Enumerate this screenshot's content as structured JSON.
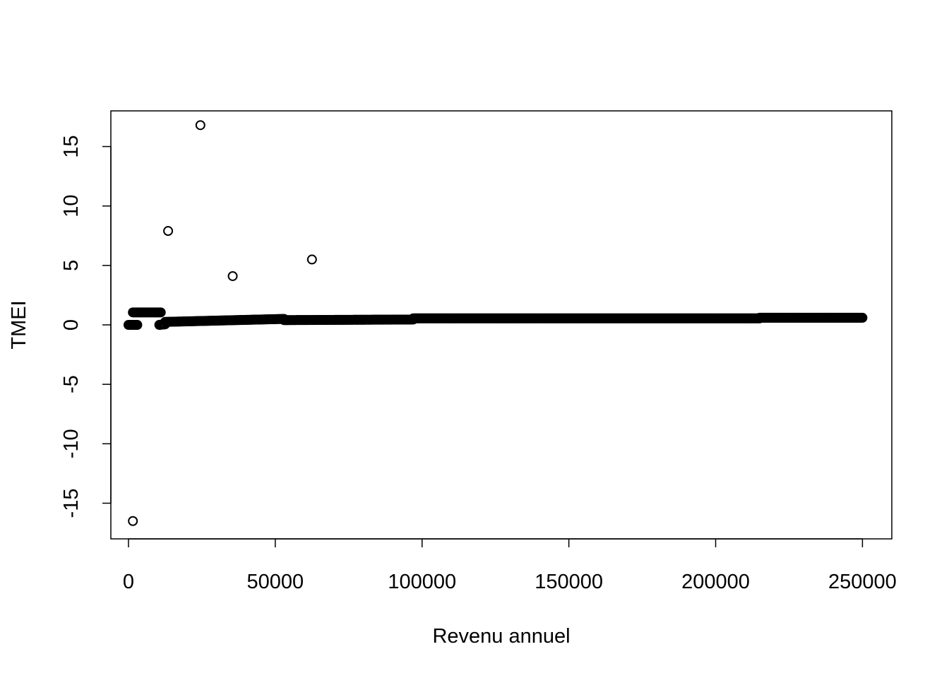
{
  "chart_data": {
    "type": "scatter",
    "title": "",
    "xlabel": "Revenu annuel",
    "ylabel": "TMEI",
    "xlim": [
      -6000,
      260000
    ],
    "ylim": [
      -18,
      18
    ],
    "x_ticks": [
      0,
      50000,
      100000,
      150000,
      200000,
      250000
    ],
    "x_tick_labels": [
      "0",
      "50000",
      "100000",
      "150000",
      "200000",
      "250000"
    ],
    "y_ticks": [
      -15,
      -10,
      -5,
      0,
      5,
      10,
      15
    ],
    "y_tick_labels": [
      "-15",
      "-10",
      "-5",
      "0",
      "5",
      "10",
      "15"
    ],
    "grid": false,
    "marker": "open-circle",
    "point_color": "#000000",
    "outliers": [
      {
        "x": 1500,
        "y": -16.5
      },
      {
        "x": 13500,
        "y": 7.9
      },
      {
        "x": 24500,
        "y": 16.8
      },
      {
        "x": 35500,
        "y": 4.1
      },
      {
        "x": 62500,
        "y": 5.5
      }
    ],
    "dense_segments": [
      {
        "x_start": 0,
        "x_end": 3000,
        "y_start": 0.0,
        "y_end": 0.0
      },
      {
        "x_start": 1500,
        "x_end": 11000,
        "y_start": 1.05,
        "y_end": 1.05
      },
      {
        "x_start": 10500,
        "x_end": 12500,
        "y_start": 0.0,
        "y_end": 0.05
      },
      {
        "x_start": 12500,
        "x_end": 53000,
        "y_start": 0.25,
        "y_end": 0.5
      },
      {
        "x_start": 53000,
        "x_end": 97000,
        "y_start": 0.4,
        "y_end": 0.45
      },
      {
        "x_start": 97000,
        "x_end": 215000,
        "y_start": 0.55,
        "y_end": 0.55
      },
      {
        "x_start": 215000,
        "x_end": 250000,
        "y_start": 0.6,
        "y_end": 0.6
      }
    ]
  }
}
